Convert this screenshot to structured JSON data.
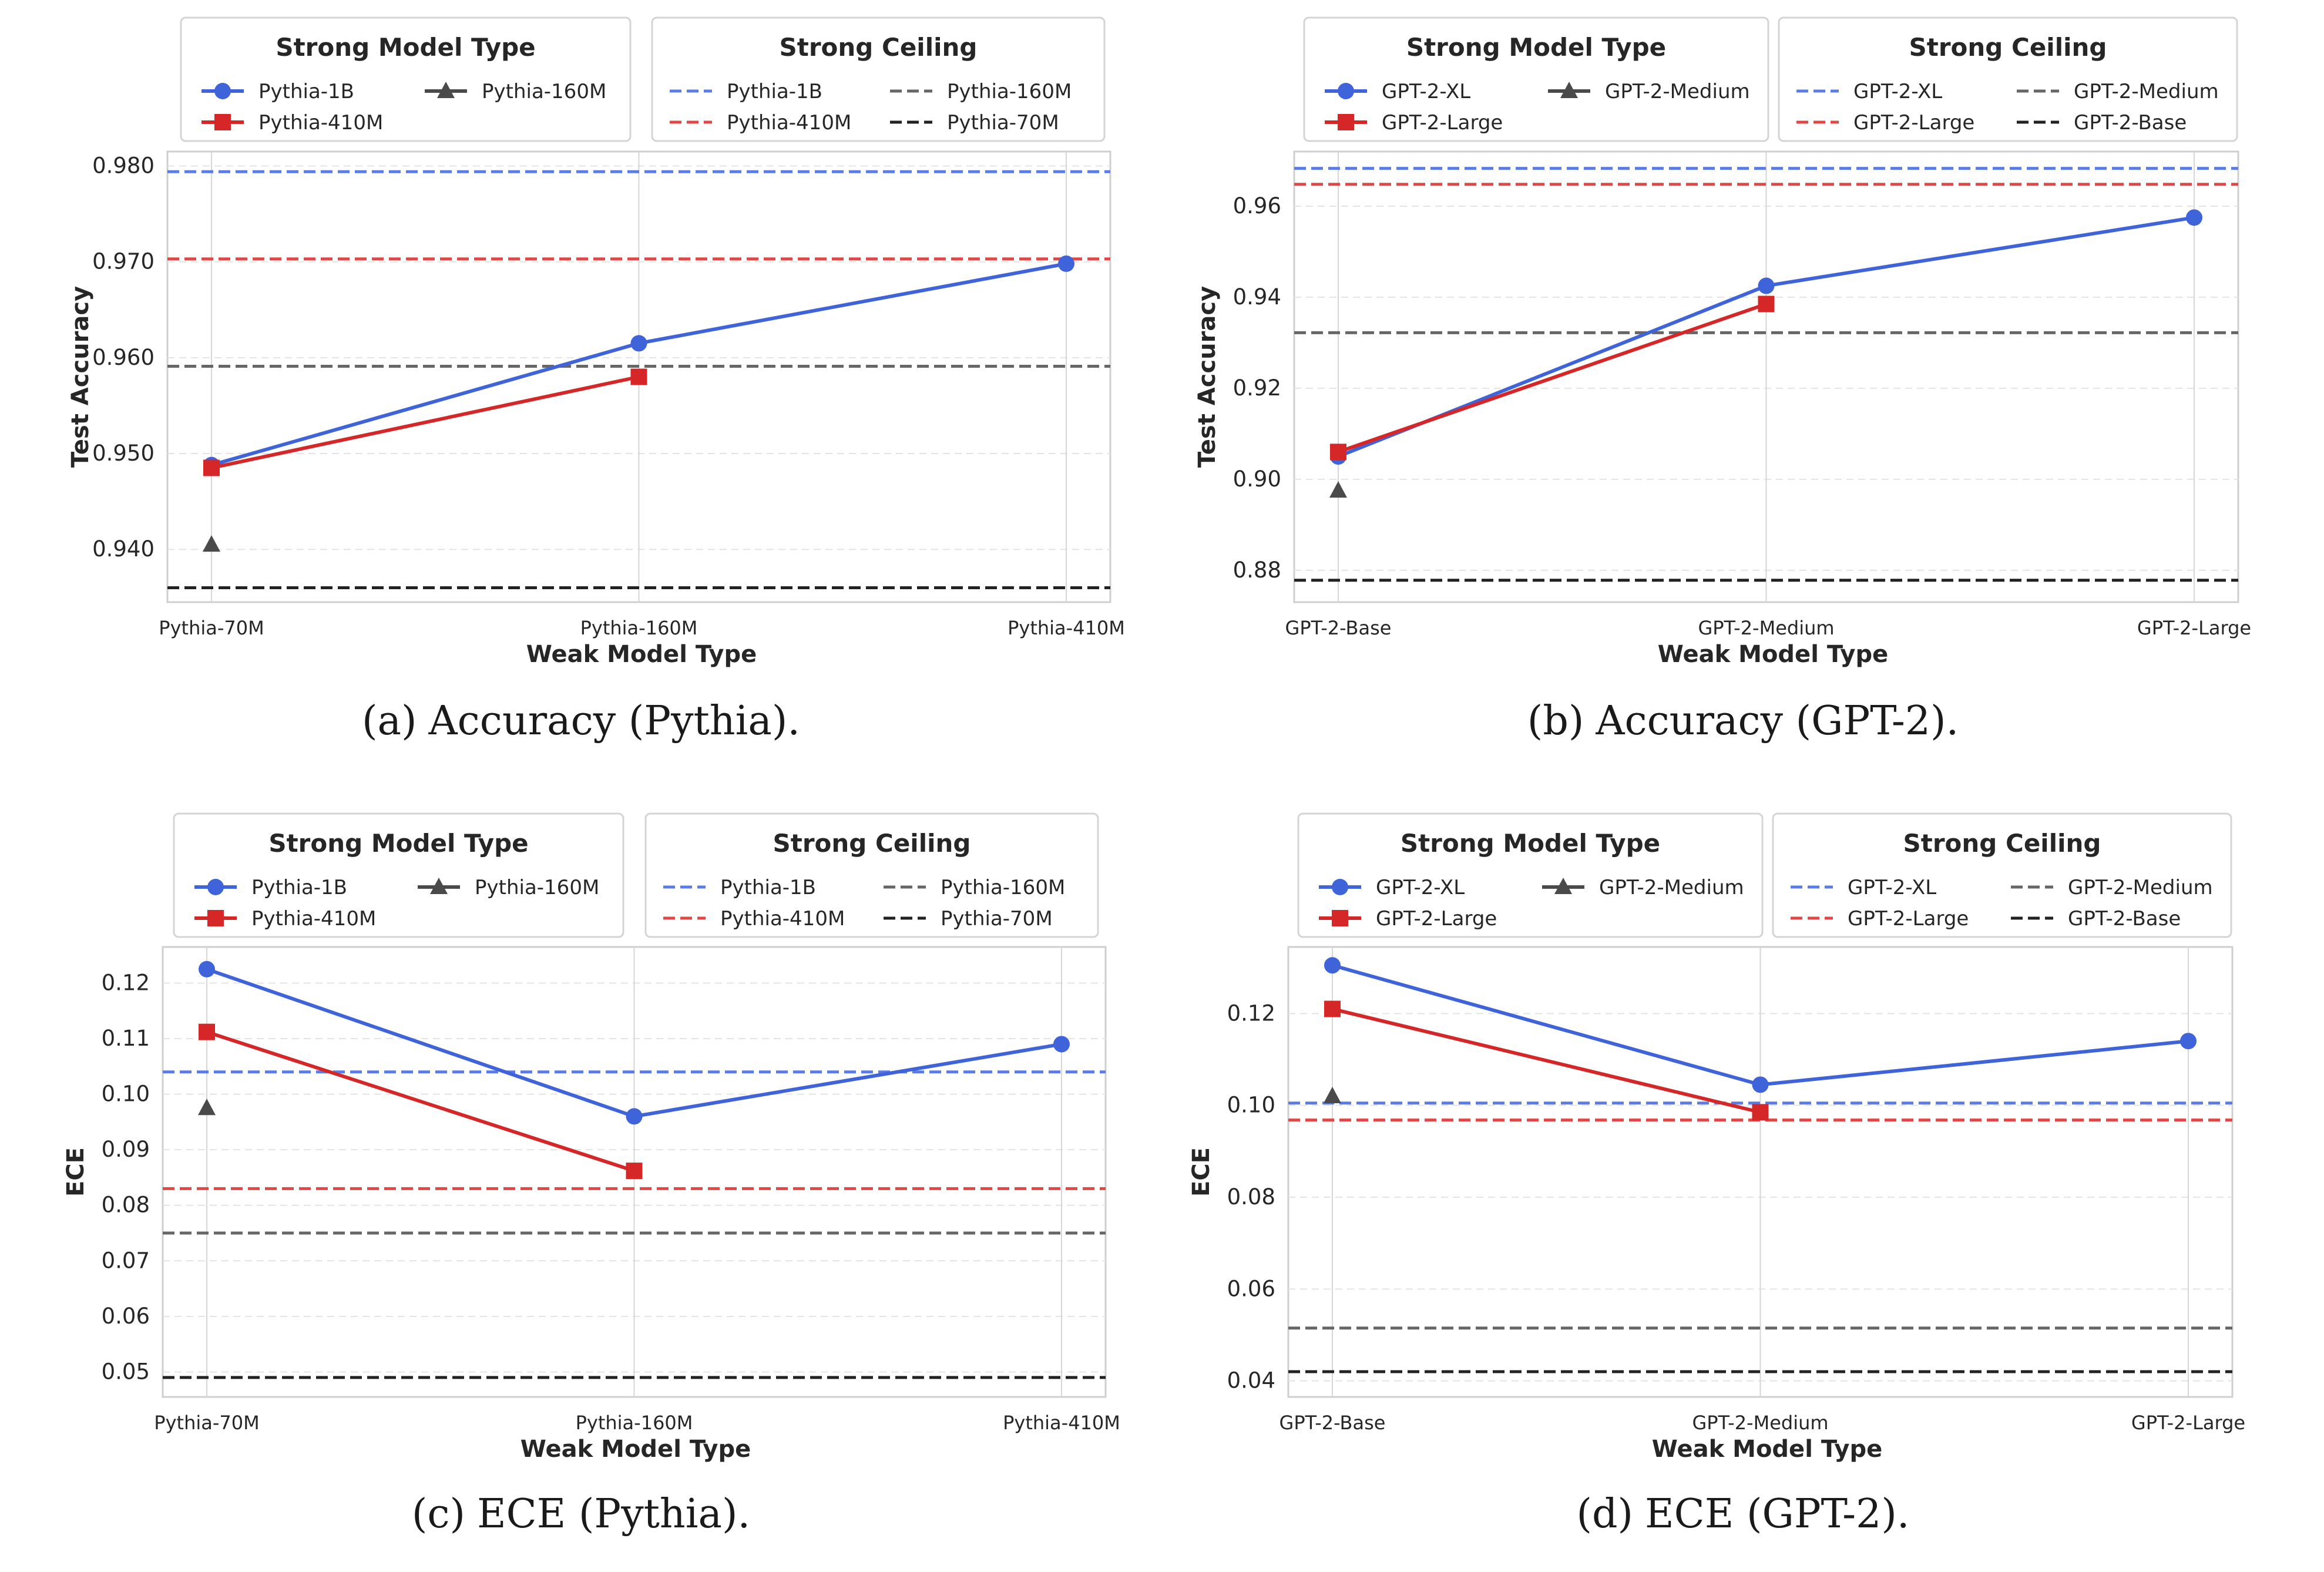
{
  "chart_data": [
    {
      "type": "line",
      "caption_label": "(a)",
      "caption_text": "Accuracy (Pythia).",
      "xlabel": "Weak Model Type",
      "ylabel": "Test Accuracy",
      "categories": [
        "Pythia-70M",
        "Pythia-160M",
        "Pythia-410M"
      ],
      "ylim": [
        0.9345,
        0.9815
      ],
      "yticks": [
        0.94,
        0.95,
        0.96,
        0.97,
        0.98
      ],
      "tick_format": "3",
      "grid": true,
      "legend_strong": {
        "title": "Strong Model Type",
        "entries": [
          "Pythia-1B",
          "Pythia-410M",
          "Pythia-160M"
        ]
      },
      "legend_ceiling": {
        "title": "Strong Ceiling",
        "entries": [
          "Pythia-1B",
          "Pythia-410M",
          "Pythia-160M",
          "Pythia-70M"
        ]
      },
      "series": [
        {
          "name": "Pythia-1B",
          "marker": "circle",
          "color": "#3f63d9",
          "values": [
            0.9488,
            0.9615,
            0.9698
          ]
        },
        {
          "name": "Pythia-410M",
          "marker": "square",
          "color": "#d62728",
          "values": [
            0.9485,
            0.958,
            null
          ]
        },
        {
          "name": "Pythia-160M",
          "marker": "triangle",
          "color": "#4a4a4a",
          "values": [
            0.9405,
            null,
            null
          ]
        }
      ],
      "ceilings": [
        {
          "name": "Pythia-1B",
          "value": 0.9794,
          "color": "#5b7be6"
        },
        {
          "name": "Pythia-410M",
          "value": 0.9703,
          "color": "#e04848"
        },
        {
          "name": "Pythia-160M",
          "value": 0.9591,
          "color": "#666666"
        },
        {
          "name": "Pythia-70M",
          "value": 0.936,
          "color": "#222222"
        }
      ]
    },
    {
      "type": "line",
      "caption_label": "(b)",
      "caption_text": "Accuracy (GPT-2).",
      "xlabel": "Weak Model Type",
      "ylabel": "Test Accuracy",
      "categories": [
        "GPT-2-Base",
        "GPT-2-Medium",
        "GPT-2-Large"
      ],
      "ylim": [
        0.873,
        0.972
      ],
      "yticks": [
        0.88,
        0.9,
        0.92,
        0.94,
        0.96
      ],
      "tick_format": "2",
      "grid": true,
      "legend_strong": {
        "title": "Strong Model Type",
        "entries": [
          "GPT-2-XL",
          "GPT-2-Large",
          "GPT-2-Medium"
        ]
      },
      "legend_ceiling": {
        "title": "Strong Ceiling",
        "entries": [
          "GPT-2-XL",
          "GPT-2-Large",
          "GPT-2-Medium",
          "GPT-2-Base"
        ]
      },
      "series": [
        {
          "name": "GPT-2-XL",
          "marker": "circle",
          "color": "#3f63d9",
          "values": [
            0.905,
            0.9425,
            0.9575
          ]
        },
        {
          "name": "GPT-2-Large",
          "marker": "square",
          "color": "#d62728",
          "values": [
            0.906,
            0.9385,
            null
          ]
        },
        {
          "name": "GPT-2-Medium",
          "marker": "triangle",
          "color": "#4a4a4a",
          "values": [
            0.8975,
            null,
            null
          ]
        }
      ],
      "ceilings": [
        {
          "name": "GPT-2-XL",
          "value": 0.9683,
          "color": "#5b7be6"
        },
        {
          "name": "GPT-2-Large",
          "value": 0.9648,
          "color": "#e04848"
        },
        {
          "name": "GPT-2-Medium",
          "value": 0.9322,
          "color": "#666666"
        },
        {
          "name": "GPT-2-Base",
          "value": 0.8778,
          "color": "#222222"
        }
      ]
    },
    {
      "type": "line",
      "caption_label": "(c)",
      "caption_text": "ECE (Pythia).",
      "xlabel": "Weak Model Type",
      "ylabel": "ECE",
      "categories": [
        "Pythia-70M",
        "Pythia-160M",
        "Pythia-410M"
      ],
      "ylim": [
        0.0455,
        0.1265
      ],
      "yticks": [
        0.05,
        0.06,
        0.07,
        0.08,
        0.09,
        0.1,
        0.11,
        0.12
      ],
      "tick_format": "2",
      "grid": true,
      "legend_strong": {
        "title": "Strong Model Type",
        "entries": [
          "Pythia-1B",
          "Pythia-410M",
          "Pythia-160M"
        ]
      },
      "legend_ceiling": {
        "title": "Strong Ceiling",
        "entries": [
          "Pythia-1B",
          "Pythia-410M",
          "Pythia-160M",
          "Pythia-70M"
        ]
      },
      "series": [
        {
          "name": "Pythia-1B",
          "marker": "circle",
          "color": "#3f63d9",
          "values": [
            0.1225,
            0.096,
            0.109
          ]
        },
        {
          "name": "Pythia-410M",
          "marker": "square",
          "color": "#d62728",
          "values": [
            0.1112,
            0.0862,
            null
          ]
        },
        {
          "name": "Pythia-160M",
          "marker": "triangle",
          "color": "#4a4a4a",
          "values": [
            0.0975,
            null,
            null
          ]
        }
      ],
      "ceilings": [
        {
          "name": "Pythia-1B",
          "value": 0.104,
          "color": "#5b7be6"
        },
        {
          "name": "Pythia-410M",
          "value": 0.083,
          "color": "#e04848"
        },
        {
          "name": "Pythia-160M",
          "value": 0.075,
          "color": "#666666"
        },
        {
          "name": "Pythia-70M",
          "value": 0.049,
          "color": "#222222"
        }
      ]
    },
    {
      "type": "line",
      "caption_label": "(d)",
      "caption_text": "ECE (GPT-2).",
      "xlabel": "Weak Model Type",
      "ylabel": "ECE",
      "categories": [
        "GPT-2-Base",
        "GPT-2-Medium",
        "GPT-2-Large"
      ],
      "ylim": [
        0.0365,
        0.1345
      ],
      "yticks": [
        0.04,
        0.06,
        0.08,
        0.1,
        0.12
      ],
      "tick_format": "2",
      "grid": true,
      "legend_strong": {
        "title": "Strong Model Type",
        "entries": [
          "GPT-2-XL",
          "GPT-2-Large",
          "GPT-2-Medium"
        ]
      },
      "legend_ceiling": {
        "title": "Strong Ceiling",
        "entries": [
          "GPT-2-XL",
          "GPT-2-Large",
          "GPT-2-Medium",
          "GPT-2-Base"
        ]
      },
      "series": [
        {
          "name": "GPT-2-XL",
          "marker": "circle",
          "color": "#3f63d9",
          "values": [
            0.1305,
            0.1045,
            0.114
          ]
        },
        {
          "name": "GPT-2-Large",
          "marker": "square",
          "color": "#d62728",
          "values": [
            0.121,
            0.0985,
            null
          ]
        },
        {
          "name": "GPT-2-Medium",
          "marker": "triangle",
          "color": "#4a4a4a",
          "values": [
            0.102,
            null,
            null
          ]
        }
      ],
      "ceilings": [
        {
          "name": "GPT-2-XL",
          "value": 0.1005,
          "color": "#5b7be6"
        },
        {
          "name": "GPT-2-Large",
          "value": 0.0968,
          "color": "#e04848"
        },
        {
          "name": "GPT-2-Medium",
          "value": 0.0515,
          "color": "#666666"
        },
        {
          "name": "GPT-2-Base",
          "value": 0.042,
          "color": "#222222"
        }
      ]
    }
  ]
}
